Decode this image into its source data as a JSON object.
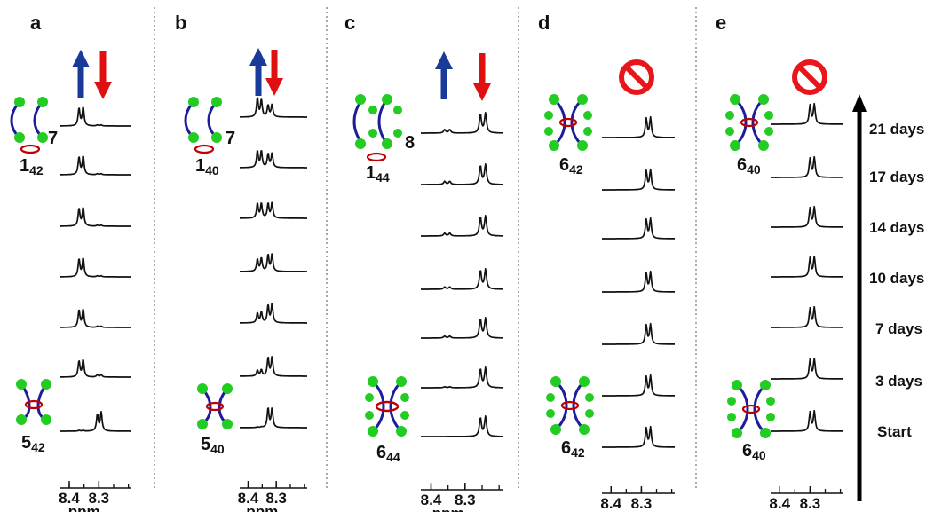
{
  "figure": {
    "x_axis": {
      "unit": "ppm",
      "tick_labels": [
        "8.4",
        "8.3"
      ],
      "reversed": true,
      "range_ppm": [
        8.43,
        8.19
      ]
    },
    "time_axis": {
      "labels": [
        "21 days",
        "17 days",
        "14 days",
        "10 days",
        "7 days",
        "3 days",
        "Start"
      ]
    },
    "colors": {
      "up_arrow": "#1a3a9a",
      "down_arrow": "#e01010",
      "prohibited": "#e8161b",
      "bead": "#22cc22",
      "thread": "#1c1c9c",
      "ring": "#c00000"
    },
    "panels": [
      {
        "label": "a",
        "indicator": "arrows",
        "top_compound": {
          "base": "1",
          "sub": "42",
          "partner": "7"
        },
        "bottom_compound": {
          "base": "5",
          "sub": "42"
        }
      },
      {
        "label": "b",
        "indicator": "arrows",
        "top_compound": {
          "base": "1",
          "sub": "40",
          "partner": "7"
        },
        "bottom_compound": {
          "base": "5",
          "sub": "40"
        }
      },
      {
        "label": "c",
        "indicator": "arrows",
        "top_compound": {
          "base": "1",
          "sub": "44",
          "partner": "8"
        },
        "bottom_compound": {
          "base": "6",
          "sub": "44"
        }
      },
      {
        "label": "d",
        "indicator": "prohibited",
        "top_compound": {
          "base": "6",
          "sub": "42"
        },
        "bottom_compound": {
          "base": "6",
          "sub": "42"
        }
      },
      {
        "label": "e",
        "indicator": "prohibited",
        "top_compound": {
          "base": "6",
          "sub": "40"
        },
        "bottom_compound": {
          "base": "6",
          "sub": "40"
        }
      }
    ]
  },
  "chart_data": {
    "type": "line",
    "xlabel": "ppm",
    "x_ticks": [
      8.4,
      8.3
    ],
    "row_labels": [
      "21 days",
      "17 days",
      "14 days",
      "10 days",
      "7 days",
      "3 days",
      "Start"
    ],
    "panels": [
      {
        "label": "a",
        "traces": [
          {
            "time": "21 days",
            "peaks": [
              {
                "ppm": 8.367,
                "height": 0.9
              },
              {
                "ppm": 8.353,
                "height": 0.95
              },
              {
                "ppm": 8.305,
                "height": 0.05
              },
              {
                "ppm": 8.292,
                "height": 0.05
              }
            ]
          },
          {
            "time": "17 days",
            "peaks": [
              {
                "ppm": 8.367,
                "height": 0.9
              },
              {
                "ppm": 8.353,
                "height": 0.95
              },
              {
                "ppm": 8.305,
                "height": 0.05
              },
              {
                "ppm": 8.292,
                "height": 0.05
              }
            ]
          },
          {
            "time": "14 days",
            "peaks": [
              {
                "ppm": 8.367,
                "height": 0.9
              },
              {
                "ppm": 8.353,
                "height": 0.95
              },
              {
                "ppm": 8.305,
                "height": 0.05
              },
              {
                "ppm": 8.292,
                "height": 0.05
              }
            ]
          },
          {
            "time": "10 days",
            "peaks": [
              {
                "ppm": 8.367,
                "height": 0.9
              },
              {
                "ppm": 8.353,
                "height": 0.95
              },
              {
                "ppm": 8.305,
                "height": 0.05
              },
              {
                "ppm": 8.292,
                "height": 0.05
              }
            ]
          },
          {
            "time": "7 days",
            "peaks": [
              {
                "ppm": 8.367,
                "height": 0.88
              },
              {
                "ppm": 8.353,
                "height": 0.92
              },
              {
                "ppm": 8.305,
                "height": 0.06
              },
              {
                "ppm": 8.292,
                "height": 0.06
              }
            ]
          },
          {
            "time": "3 days",
            "peaks": [
              {
                "ppm": 8.367,
                "height": 0.82
              },
              {
                "ppm": 8.353,
                "height": 0.88
              },
              {
                "ppm": 8.305,
                "height": 0.12
              },
              {
                "ppm": 8.292,
                "height": 0.12
              }
            ]
          },
          {
            "time": "Start",
            "peaks": [
              {
                "ppm": 8.367,
                "height": 0.04
              },
              {
                "ppm": 8.353,
                "height": 0.04
              },
              {
                "ppm": 8.305,
                "height": 0.85
              },
              {
                "ppm": 8.292,
                "height": 0.95
              }
            ]
          }
        ]
      },
      {
        "label": "b",
        "traces": [
          {
            "time": "21 days",
            "peaks": [
              {
                "ppm": 8.367,
                "height": 0.98
              },
              {
                "ppm": 8.353,
                "height": 0.88
              },
              {
                "ppm": 8.329,
                "height": 0.6
              },
              {
                "ppm": 8.315,
                "height": 0.65
              }
            ]
          },
          {
            "time": "17 days",
            "peaks": [
              {
                "ppm": 8.367,
                "height": 0.85
              },
              {
                "ppm": 8.353,
                "height": 0.85
              },
              {
                "ppm": 8.329,
                "height": 0.7
              },
              {
                "ppm": 8.315,
                "height": 0.75
              }
            ]
          },
          {
            "time": "14 days",
            "peaks": [
              {
                "ppm": 8.367,
                "height": 0.75
              },
              {
                "ppm": 8.353,
                "height": 0.75
              },
              {
                "ppm": 8.329,
                "height": 0.75
              },
              {
                "ppm": 8.315,
                "height": 0.8
              }
            ]
          },
          {
            "time": "10 days",
            "peaks": [
              {
                "ppm": 8.367,
                "height": 0.62
              },
              {
                "ppm": 8.353,
                "height": 0.68
              },
              {
                "ppm": 8.329,
                "height": 0.85
              },
              {
                "ppm": 8.315,
                "height": 0.9
              }
            ]
          },
          {
            "time": "7 days",
            "peaks": [
              {
                "ppm": 8.367,
                "height": 0.5
              },
              {
                "ppm": 8.353,
                "height": 0.55
              },
              {
                "ppm": 8.329,
                "height": 0.9
              },
              {
                "ppm": 8.315,
                "height": 1.0
              }
            ]
          },
          {
            "time": "3 days",
            "peaks": [
              {
                "ppm": 8.367,
                "height": 0.3
              },
              {
                "ppm": 8.353,
                "height": 0.32
              },
              {
                "ppm": 8.329,
                "height": 0.95
              },
              {
                "ppm": 8.315,
                "height": 1.0
              }
            ]
          },
          {
            "time": "Start",
            "peaks": [
              {
                "ppm": 8.367,
                "height": 0.03
              },
              {
                "ppm": 8.353,
                "height": 0.03
              },
              {
                "ppm": 8.329,
                "height": 1.0
              },
              {
                "ppm": 8.315,
                "height": 1.0
              }
            ]
          }
        ]
      },
      {
        "label": "c",
        "traces": [
          {
            "time": "21 days",
            "peaks": [
              {
                "ppm": 8.36,
                "height": 0.18
              },
              {
                "ppm": 8.345,
                "height": 0.18
              },
              {
                "ppm": 8.255,
                "height": 0.95
              },
              {
                "ppm": 8.24,
                "height": 1.0
              }
            ]
          },
          {
            "time": "17 days",
            "peaks": [
              {
                "ppm": 8.36,
                "height": 0.16
              },
              {
                "ppm": 8.345,
                "height": 0.16
              },
              {
                "ppm": 8.255,
                "height": 0.95
              },
              {
                "ppm": 8.24,
                "height": 1.0
              }
            ]
          },
          {
            "time": "14 days",
            "peaks": [
              {
                "ppm": 8.36,
                "height": 0.14
              },
              {
                "ppm": 8.345,
                "height": 0.14
              },
              {
                "ppm": 8.255,
                "height": 0.95
              },
              {
                "ppm": 8.24,
                "height": 1.0
              }
            ]
          },
          {
            "time": "10 days",
            "peaks": [
              {
                "ppm": 8.36,
                "height": 0.12
              },
              {
                "ppm": 8.345,
                "height": 0.12
              },
              {
                "ppm": 8.255,
                "height": 0.95
              },
              {
                "ppm": 8.24,
                "height": 1.0
              }
            ]
          },
          {
            "time": "7 days",
            "peaks": [
              {
                "ppm": 8.36,
                "height": 0.1
              },
              {
                "ppm": 8.345,
                "height": 0.1
              },
              {
                "ppm": 8.255,
                "height": 0.95
              },
              {
                "ppm": 8.24,
                "height": 1.0
              }
            ]
          },
          {
            "time": "3 days",
            "peaks": [
              {
                "ppm": 8.36,
                "height": 0.05
              },
              {
                "ppm": 8.345,
                "height": 0.05
              },
              {
                "ppm": 8.255,
                "height": 0.95
              },
              {
                "ppm": 8.24,
                "height": 1.0
              }
            ]
          },
          {
            "time": "Start",
            "peaks": [
              {
                "ppm": 8.36,
                "height": 0.0
              },
              {
                "ppm": 8.345,
                "height": 0.0
              },
              {
                "ppm": 8.255,
                "height": 0.95
              },
              {
                "ppm": 8.24,
                "height": 1.0
              }
            ]
          }
        ]
      },
      {
        "label": "d",
        "traces": [
          {
            "time": "21 days",
            "peaks": [
              {
                "ppm": 8.284,
                "height": 0.95
              },
              {
                "ppm": 8.27,
                "height": 1.0
              }
            ]
          },
          {
            "time": "17 days",
            "peaks": [
              {
                "ppm": 8.284,
                "height": 0.95
              },
              {
                "ppm": 8.27,
                "height": 1.0
              }
            ]
          },
          {
            "time": "14 days",
            "peaks": [
              {
                "ppm": 8.284,
                "height": 0.95
              },
              {
                "ppm": 8.27,
                "height": 1.0
              }
            ]
          },
          {
            "time": "10 days",
            "peaks": [
              {
                "ppm": 8.284,
                "height": 0.95
              },
              {
                "ppm": 8.27,
                "height": 1.0
              }
            ]
          },
          {
            "time": "7 days",
            "peaks": [
              {
                "ppm": 8.284,
                "height": 0.95
              },
              {
                "ppm": 8.27,
                "height": 1.0
              }
            ]
          },
          {
            "time": "3 days",
            "peaks": [
              {
                "ppm": 8.284,
                "height": 0.95
              },
              {
                "ppm": 8.27,
                "height": 1.0
              }
            ]
          },
          {
            "time": "Start",
            "peaks": [
              {
                "ppm": 8.284,
                "height": 0.95
              },
              {
                "ppm": 8.27,
                "height": 1.0
              }
            ]
          }
        ]
      },
      {
        "label": "e",
        "traces": [
          {
            "time": "21 days",
            "peaks": [
              {
                "ppm": 8.3,
                "height": 0.95
              },
              {
                "ppm": 8.286,
                "height": 1.0
              }
            ]
          },
          {
            "time": "17 days",
            "peaks": [
              {
                "ppm": 8.3,
                "height": 0.95
              },
              {
                "ppm": 8.286,
                "height": 1.0
              }
            ]
          },
          {
            "time": "14 days",
            "peaks": [
              {
                "ppm": 8.3,
                "height": 0.95
              },
              {
                "ppm": 8.286,
                "height": 1.0
              }
            ]
          },
          {
            "time": "10 days",
            "peaks": [
              {
                "ppm": 8.3,
                "height": 0.95
              },
              {
                "ppm": 8.286,
                "height": 1.0
              }
            ]
          },
          {
            "time": "7 days",
            "peaks": [
              {
                "ppm": 8.3,
                "height": 0.95
              },
              {
                "ppm": 8.286,
                "height": 1.0
              }
            ]
          },
          {
            "time": "3 days",
            "peaks": [
              {
                "ppm": 8.3,
                "height": 0.95
              },
              {
                "ppm": 8.286,
                "height": 1.0
              }
            ]
          },
          {
            "time": "Start",
            "peaks": [
              {
                "ppm": 8.3,
                "height": 0.95
              },
              {
                "ppm": 8.286,
                "height": 1.0
              }
            ]
          }
        ]
      }
    ]
  }
}
